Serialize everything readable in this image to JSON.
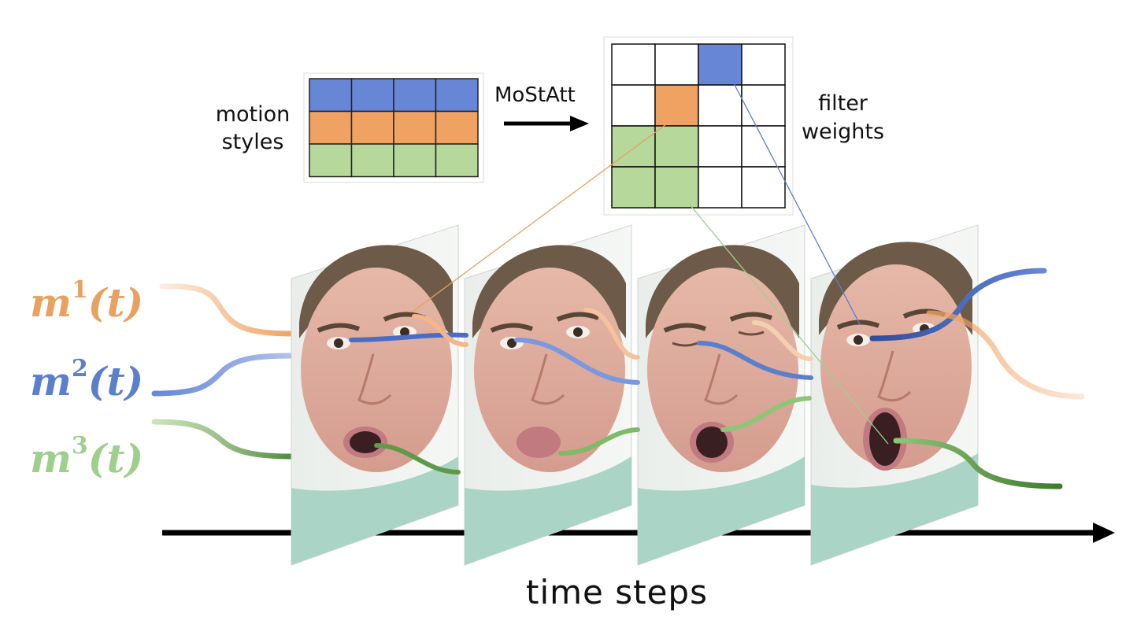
{
  "labels": {
    "motion_styles_line1": "motion",
    "motion_styles_line2": "styles",
    "mostatt": "MoStAtt",
    "filter_weights_line1": "filter",
    "filter_weights_line2": "weights",
    "time_steps": "time steps"
  },
  "signals": [
    {
      "base": "m",
      "sup": "1",
      "arg": "(t)",
      "color": "#e8a15f"
    },
    {
      "base": "m",
      "sup": "2",
      "arg": "(t)",
      "color": "#5b7fcc"
    },
    {
      "base": "m",
      "sup": "3",
      "arg": "(t)",
      "color": "#9fcf8d"
    }
  ],
  "colors": {
    "orange": "#f0a262",
    "blue": "#6787d6",
    "green": "#b6d89a",
    "dark_green": "#4f8a3c",
    "dark_blue": "#2f4d9a"
  },
  "motion_styles_grid": {
    "rows": [
      "blue",
      "orange",
      "green"
    ],
    "columns": 4
  },
  "filter_weights_grid": [
    [
      "white",
      "white",
      "blue",
      "white"
    ],
    [
      "white",
      "orange",
      "white",
      "white"
    ],
    [
      "green",
      "green",
      "white",
      "white"
    ],
    [
      "green",
      "green",
      "white",
      "white"
    ]
  ],
  "frames": [
    {
      "image": "face-frame-1"
    },
    {
      "image": "face-frame-2"
    },
    {
      "image": "face-frame-3-eyes-closed"
    },
    {
      "image": "face-frame-4-mouth-open"
    }
  ]
}
